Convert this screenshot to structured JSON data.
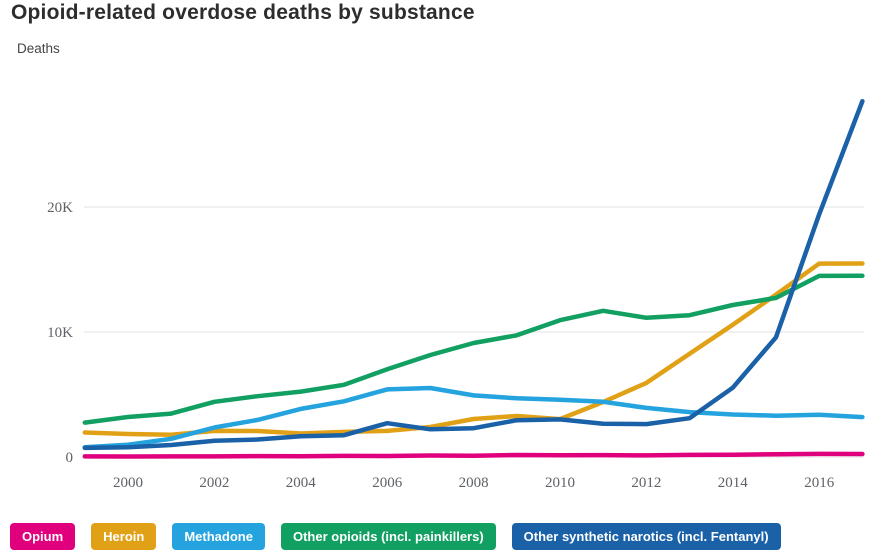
{
  "header": {
    "title": "Opioid-related overdose deaths by substance",
    "subtitle": "Deaths"
  },
  "chart_data": {
    "type": "line",
    "title": "Opioid-related overdose deaths by substance",
    "xlabel": "",
    "ylabel": "Deaths",
    "grid": "horizontal",
    "legend_position": "bottom",
    "x": [
      1999,
      2000,
      2001,
      2002,
      2003,
      2004,
      2005,
      2006,
      2007,
      2008,
      2009,
      2010,
      2011,
      2012,
      2013,
      2014,
      2015,
      2016,
      2017
    ],
    "x_ticks": [
      "2000",
      "2002",
      "2004",
      "2006",
      "2008",
      "2010",
      "2012",
      "2014",
      "2016"
    ],
    "y_ticks": [
      {
        "value": 0,
        "label": "0"
      },
      {
        "value": 10000,
        "label": "10K"
      },
      {
        "value": 20000,
        "label": "20K"
      }
    ],
    "ylim": [
      0,
      28500
    ],
    "series": [
      {
        "name": "Opium",
        "color": "#E0007E",
        "values": [
          46,
          37,
          47,
          51,
          69,
          65,
          85,
          78,
          117,
          106,
          160,
          133,
          150,
          132,
          171,
          182,
          214,
          249,
          243
        ]
      },
      {
        "name": "Heroin",
        "color": "#E1A117",
        "values": [
          1960,
          1842,
          1779,
          2089,
          2080,
          1878,
          2009,
          2088,
          2399,
          3041,
          3278,
          3036,
          4397,
          5925,
          8257,
          10574,
          12989,
          15469,
          15482
        ]
      },
      {
        "name": "Methadone",
        "color": "#24A3DF",
        "values": [
          784,
          986,
          1456,
          2360,
          2972,
          3845,
          4460,
          5406,
          5518,
          4924,
          4696,
          4577,
          4418,
          3932,
          3591,
          3400,
          3301,
          3373,
          3194
        ]
      },
      {
        "name": "Other opioids (incl. painkillers)",
        "color": "#12A062",
        "values": [
          2749,
          3202,
          3476,
          4416,
          4867,
          5231,
          5774,
          7017,
          8158,
          9119,
          9735,
          10943,
          11693,
          11140,
          11346,
          12159,
          12727,
          14487,
          14495
        ]
      },
      {
        "name": "Other synthetic narotics (incl. Fentanyl)",
        "color": "#1A61A8",
        "values": [
          730,
          782,
          957,
          1295,
          1400,
          1664,
          1742,
          2707,
          2213,
          2306,
          2946,
          3007,
          2666,
          2628,
          3105,
          5544,
          9580,
          19413,
          28466
        ]
      }
    ]
  }
}
